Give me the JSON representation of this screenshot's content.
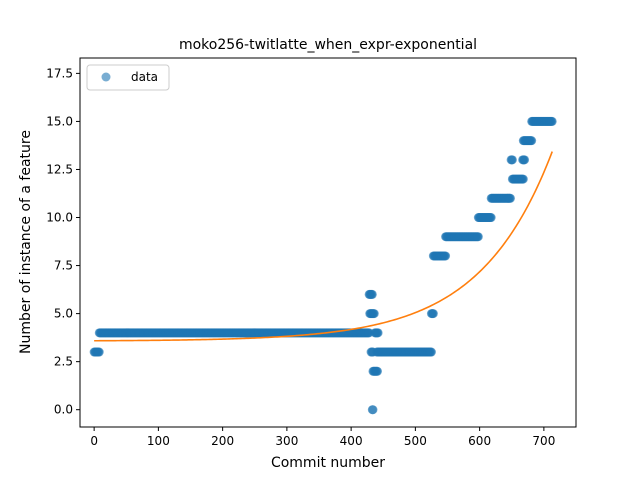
{
  "chart_data": {
    "type": "scatter",
    "title": "moko256-twitlatte_when_expr-exponential",
    "xlabel": "Commit number",
    "ylabel": "Number of instance of a feature",
    "xlim": [
      -22,
      750
    ],
    "ylim": [
      -0.9,
      18.3
    ],
    "xticks": [
      0,
      100,
      200,
      300,
      400,
      500,
      600,
      700
    ],
    "yticks": [
      0.0,
      2.5,
      5.0,
      7.5,
      10.0,
      12.5,
      15.0,
      17.5
    ],
    "ytick_labels": [
      "0.0",
      "2.5",
      "5.0",
      "7.5",
      "10.0",
      "12.5",
      "15.0",
      "17.5"
    ],
    "grid": false,
    "legend": {
      "position": "top-left",
      "entries": [
        "data"
      ]
    },
    "series": [
      {
        "name": "data",
        "kind": "scatter",
        "color": "#1f77b4",
        "segments": [
          {
            "x0": 0,
            "x1": 8,
            "y": 3
          },
          {
            "x0": 8,
            "x1": 428,
            "y": 4
          },
          {
            "x0": 428,
            "x1": 433,
            "y": 6
          },
          {
            "x0": 429,
            "x1": 436,
            "y": 5
          },
          {
            "x0": 431,
            "x1": 434,
            "y": 3
          },
          {
            "x0": 433,
            "x1": 434,
            "y": 0
          },
          {
            "x0": 434,
            "x1": 441,
            "y": 2
          },
          {
            "x0": 437,
            "x1": 442,
            "y": 4
          },
          {
            "x0": 440,
            "x1": 525,
            "y": 3
          },
          {
            "x0": 525,
            "x1": 528,
            "y": 5
          },
          {
            "x0": 528,
            "x1": 547,
            "y": 8
          },
          {
            "x0": 547,
            "x1": 598,
            "y": 9
          },
          {
            "x0": 598,
            "x1": 618,
            "y": 10
          },
          {
            "x0": 618,
            "x1": 648,
            "y": 11
          },
          {
            "x0": 649,
            "x1": 651,
            "y": 13
          },
          {
            "x0": 651,
            "x1": 668,
            "y": 12
          },
          {
            "x0": 667,
            "x1": 670,
            "y": 13
          },
          {
            "x0": 668,
            "x1": 681,
            "y": 14
          },
          {
            "x0": 681,
            "x1": 713,
            "y": 15
          }
        ]
      },
      {
        "name": "",
        "kind": "line",
        "color": "#ff7f0e",
        "fit": {
          "model": "a*exp(b*x)+c",
          "a": 0.0173,
          "b": 0.0089,
          "c": 3.57
        },
        "x_range": [
          0,
          713
        ]
      }
    ]
  }
}
